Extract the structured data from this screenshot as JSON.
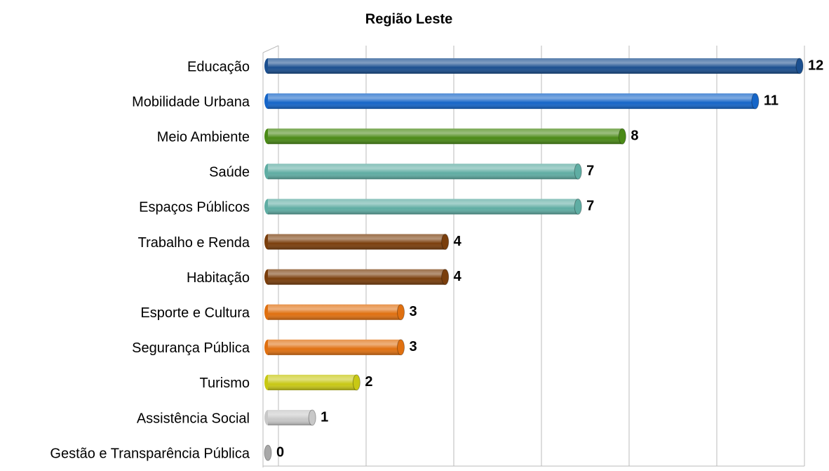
{
  "chart_data": {
    "type": "bar",
    "orientation": "horizontal",
    "title": "Região Leste",
    "categories": [
      "Educação",
      "Mobilidade Urbana",
      "Meio Ambiente",
      "Saúde",
      "Espaços Públicos",
      "Trabalho e Renda",
      "Habitação",
      "Esporte e Cultura",
      "Segurança Pública",
      "Turismo",
      "Assistência Social",
      "Gestão e Transparência Pública"
    ],
    "values": [
      12,
      11,
      8,
      7,
      7,
      4,
      4,
      3,
      3,
      2,
      1,
      0
    ],
    "colors": [
      "#1b4f8f",
      "#1565c8",
      "#4a8a16",
      "#5fada3",
      "#5fada3",
      "#7a3e0c",
      "#7a3e0c",
      "#e07010",
      "#e07010",
      "#c8c814",
      "#c8c8c8",
      "#a8a8a8"
    ],
    "xlim": [
      0,
      12
    ],
    "xticks": [
      0,
      2,
      4,
      6,
      8,
      10,
      12
    ],
    "grid": true
  }
}
